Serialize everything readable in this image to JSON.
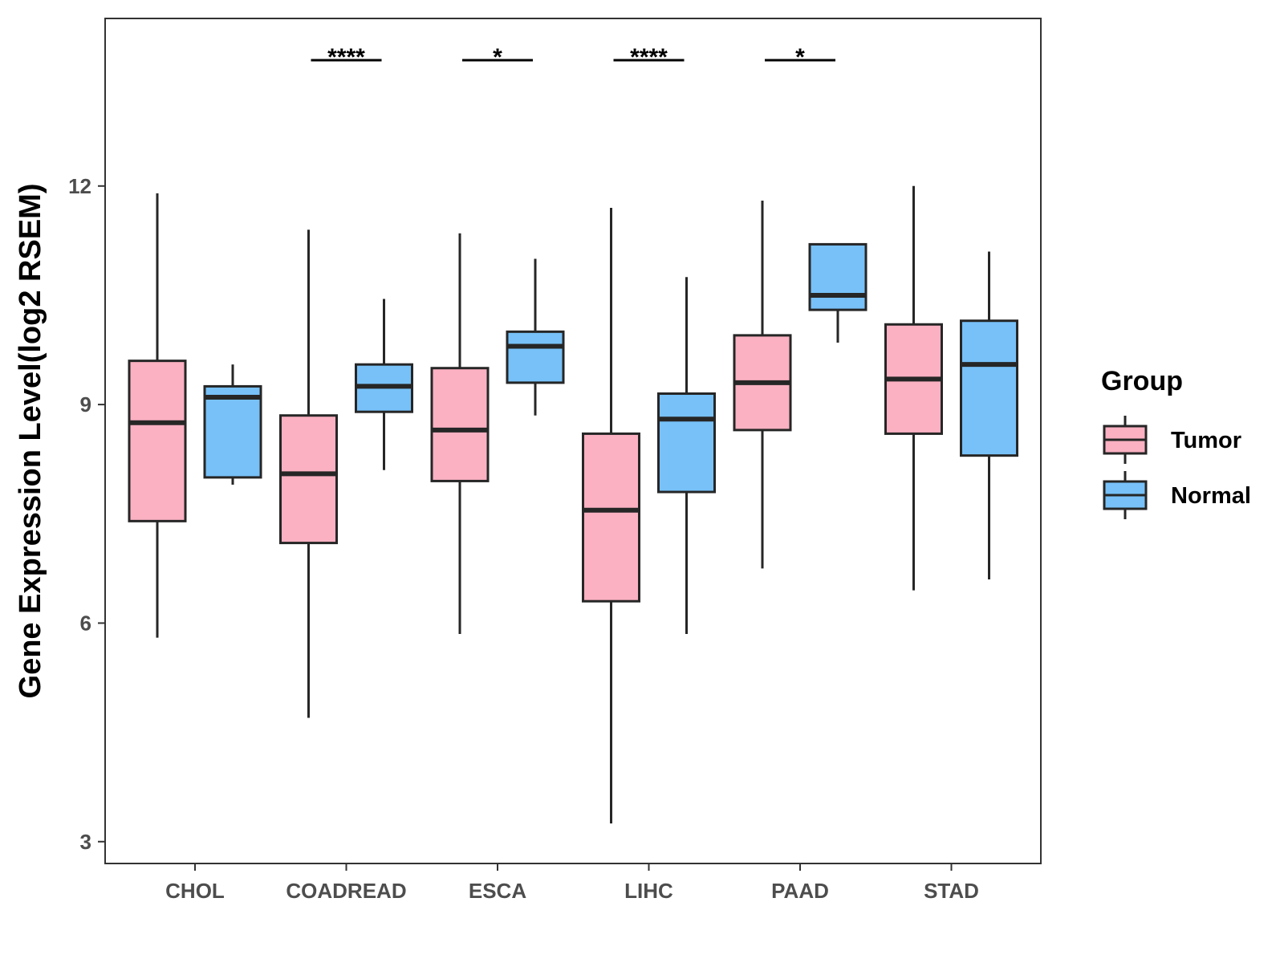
{
  "chart_data": {
    "type": "boxplot",
    "ylabel": "Gene Expression Level(log2 RSEM)",
    "xlabel": "",
    "ylim": [
      2.7,
      14.3
    ],
    "yticks": [
      3,
      6,
      9,
      12
    ],
    "categories": [
      "CHOL",
      "COADREAD",
      "ESCA",
      "LIHC",
      "PAAD",
      "STAD"
    ],
    "legend": {
      "title": "Group",
      "position": "right",
      "items": [
        {
          "name": "Tumor",
          "color": "#FBB1C2"
        },
        {
          "name": "Normal",
          "color": "#77C1F8"
        }
      ]
    },
    "series": [
      {
        "name": "Tumor",
        "color": "#FBB1C2",
        "boxes": [
          {
            "category": "CHOL",
            "min": 5.8,
            "q1": 7.4,
            "median": 8.75,
            "q3": 9.6,
            "max": 11.9
          },
          {
            "category": "COADREAD",
            "min": 4.7,
            "q1": 7.1,
            "median": 8.05,
            "q3": 8.85,
            "max": 11.4
          },
          {
            "category": "ESCA",
            "min": 5.85,
            "q1": 7.95,
            "median": 8.65,
            "q3": 9.5,
            "max": 11.35
          },
          {
            "category": "LIHC",
            "min": 3.25,
            "q1": 6.3,
            "median": 7.55,
            "q3": 8.6,
            "max": 11.7
          },
          {
            "category": "PAAD",
            "min": 6.75,
            "q1": 8.65,
            "median": 9.3,
            "q3": 9.95,
            "max": 11.8
          },
          {
            "category": "STAD",
            "min": 6.45,
            "q1": 8.6,
            "median": 9.35,
            "q3": 10.1,
            "max": 12.0
          }
        ]
      },
      {
        "name": "Normal",
        "color": "#77C1F8",
        "boxes": [
          {
            "category": "CHOL",
            "min": 7.9,
            "q1": 8.0,
            "median": 9.1,
            "q3": 9.25,
            "max": 9.55
          },
          {
            "category": "COADREAD",
            "min": 8.1,
            "q1": 8.9,
            "median": 9.25,
            "q3": 9.55,
            "max": 10.45
          },
          {
            "category": "ESCA",
            "min": 8.85,
            "q1": 9.3,
            "median": 9.8,
            "q3": 10.0,
            "max": 11.0
          },
          {
            "category": "LIHC",
            "min": 5.85,
            "q1": 7.8,
            "median": 8.8,
            "q3": 9.15,
            "max": 10.75
          },
          {
            "category": "PAAD",
            "min": 9.85,
            "q1": 10.3,
            "median": 10.5,
            "q3": 11.2,
            "max": 11.2
          },
          {
            "category": "STAD",
            "min": 6.6,
            "q1": 8.3,
            "median": 9.55,
            "q3": 10.15,
            "max": 11.1
          }
        ]
      }
    ],
    "annotations": [
      {
        "category": "COADREAD",
        "label": "****"
      },
      {
        "category": "ESCA",
        "label": "*"
      },
      {
        "category": "LIHC",
        "label": "****"
      },
      {
        "category": "PAAD",
        "label": "*"
      }
    ]
  }
}
